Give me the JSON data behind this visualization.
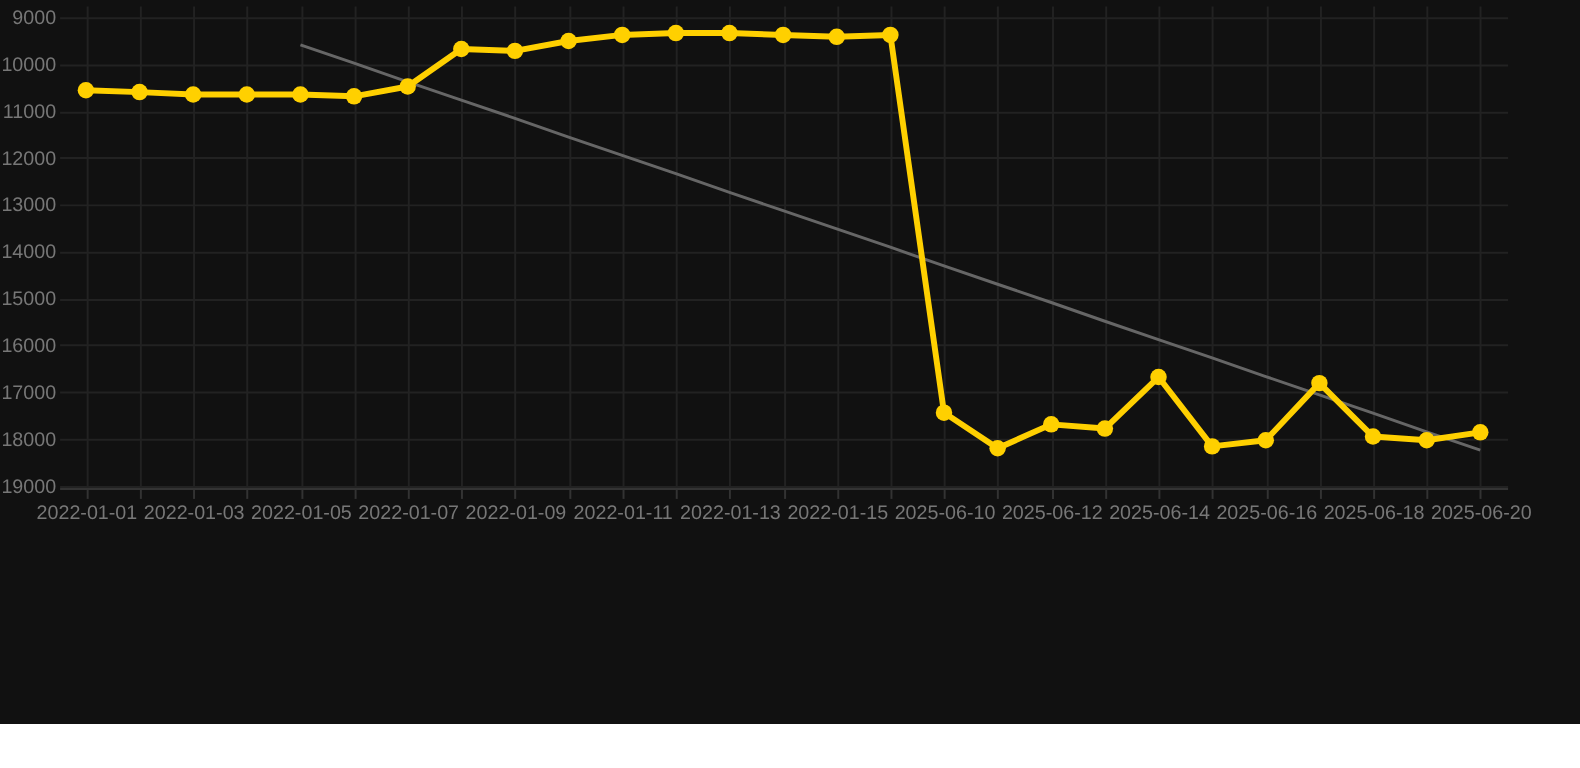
{
  "chart_data": {
    "type": "line",
    "categories": [
      "2022-01-01",
      null,
      "2022-01-03",
      null,
      "2022-01-05",
      null,
      "2022-01-07",
      null,
      "2022-01-09",
      null,
      "2022-01-11",
      null,
      "2022-01-13",
      null,
      "2022-01-15",
      null,
      "2025-06-10",
      null,
      "2025-06-12",
      null,
      "2025-06-14",
      null,
      "2025-06-16",
      null,
      "2025-06-18",
      null,
      "2025-06-20"
    ],
    "series": [
      {
        "color": "#ffd000",
        "marker": "circle",
        "values": [
          10560,
          10600,
          10650,
          10650,
          10650,
          10690,
          10480,
          9680,
          9720,
          9510,
          9380,
          9340,
          9340,
          9380,
          9420,
          9380,
          17440,
          18200,
          17690,
          17780,
          16680,
          18160,
          18030,
          16810,
          17950,
          18030,
          17860
        ]
      },
      {
        "type": "line",
        "color": "#666666",
        "marker": "none",
        "values": [
          null,
          null,
          null,
          null,
          9590,
          9980,
          10380,
          10770,
          11160,
          11560,
          11950,
          12340,
          12740,
          13130,
          13520,
          13910,
          14310,
          14700,
          15090,
          15490,
          15880,
          16270,
          16670,
          17060,
          17450,
          17850,
          18240
        ]
      }
    ],
    "ylim": [
      19050,
      8750
    ],
    "yticks": [
      9000,
      10000,
      11000,
      12000,
      13000,
      14000,
      15000,
      16000,
      17000,
      18000,
      19000
    ],
    "grid": true,
    "line_style": "solid"
  }
}
